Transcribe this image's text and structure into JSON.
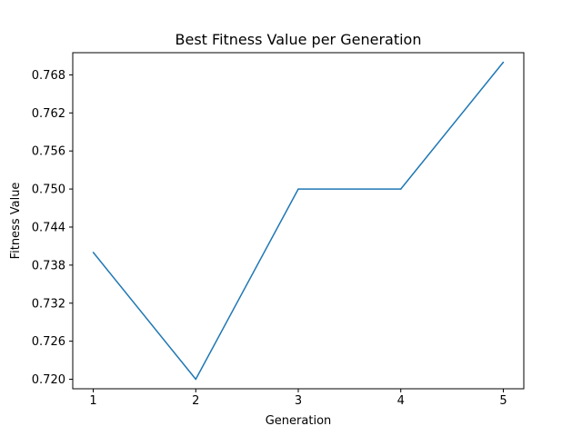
{
  "chart_data": {
    "type": "line",
    "title": "Best Fitness Value per Generation",
    "xlabel": "Generation",
    "ylabel": "Fitness Value",
    "x": [
      1,
      2,
      3,
      4,
      5
    ],
    "series": [
      {
        "values": [
          0.74,
          0.72,
          0.75,
          0.75,
          0.77
        ],
        "color": "#1f77b4"
      }
    ],
    "xticks": [
      1,
      2,
      3,
      4,
      5
    ],
    "yticks": [
      0.72,
      0.726,
      0.732,
      0.738,
      0.744,
      0.75,
      0.756,
      0.762,
      0.768
    ],
    "ytick_labels": [
      "0.720",
      "0.726",
      "0.732",
      "0.738",
      "0.744",
      "0.750",
      "0.756",
      "0.762",
      "0.768"
    ],
    "xlim": [
      0.8,
      5.2
    ],
    "ylim": [
      0.7185,
      0.7715
    ],
    "grid": false,
    "legend": false
  }
}
